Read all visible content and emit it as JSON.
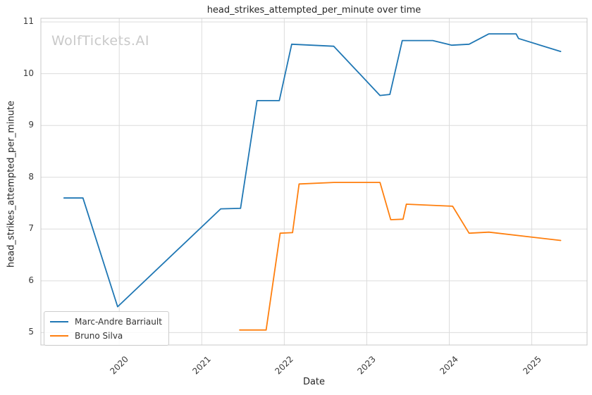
{
  "watermark": "WolfTickets.AI",
  "colors": {
    "background": "#ffffff",
    "grid": "#dcdcdc",
    "spine": "#c8c8c8",
    "text": "#262626",
    "tick_text": "#3a3a3a",
    "watermark": "#c9c9c9"
  },
  "chart_data": {
    "type": "line",
    "title": "head_strikes_attempted_per_minute over time",
    "xlabel": "Date",
    "ylabel": "head_strikes_attempted_per_minute",
    "xlim": [
      2019.05,
      2025.67
    ],
    "ylim": [
      4.76,
      11.07
    ],
    "xticks": [
      2020,
      2021,
      2022,
      2023,
      2024,
      2025
    ],
    "yticks": [
      5,
      6,
      7,
      8,
      9,
      10,
      11
    ],
    "grid": true,
    "legend_position": "lower left",
    "series": [
      {
        "name": "Marc-Andre Barriault",
        "color": "#1f77b4",
        "points": [
          [
            2019.33,
            7.6
          ],
          [
            2019.56,
            7.6
          ],
          [
            2019.98,
            5.5
          ],
          [
            2021.23,
            7.39
          ],
          [
            2021.47,
            7.4
          ],
          [
            2021.67,
            9.48
          ],
          [
            2021.94,
            9.48
          ],
          [
            2022.09,
            10.57
          ],
          [
            2022.6,
            10.53
          ],
          [
            2023.16,
            9.58
          ],
          [
            2023.28,
            9.6
          ],
          [
            2023.43,
            10.64
          ],
          [
            2023.8,
            10.64
          ],
          [
            2024.03,
            10.55
          ],
          [
            2024.24,
            10.57
          ],
          [
            2024.48,
            10.77
          ],
          [
            2024.81,
            10.77
          ],
          [
            2024.84,
            10.68
          ],
          [
            2025.35,
            10.43
          ]
        ]
      },
      {
        "name": "Bruno Silva",
        "color": "#ff7f0e",
        "points": [
          [
            2021.46,
            5.05
          ],
          [
            2021.78,
            5.05
          ],
          [
            2021.95,
            6.92
          ],
          [
            2022.1,
            6.93
          ],
          [
            2022.18,
            7.87
          ],
          [
            2022.6,
            7.9
          ],
          [
            2023.16,
            7.9
          ],
          [
            2023.29,
            7.18
          ],
          [
            2023.44,
            7.19
          ],
          [
            2023.48,
            7.48
          ],
          [
            2024.04,
            7.44
          ],
          [
            2024.24,
            6.92
          ],
          [
            2024.48,
            6.94
          ],
          [
            2025.35,
            6.78
          ]
        ]
      }
    ]
  }
}
